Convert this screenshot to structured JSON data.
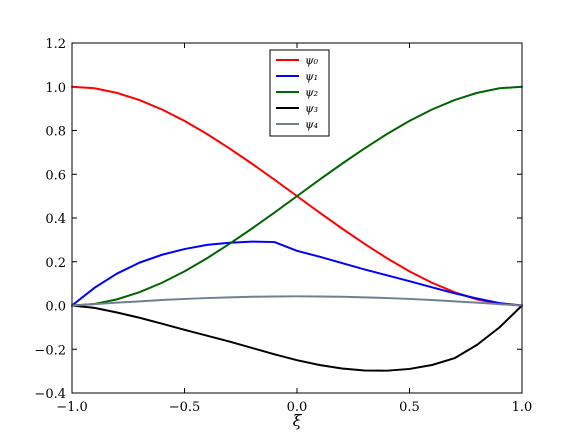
{
  "chart_data": {
    "type": "line",
    "title": "",
    "xlabel": "ξ",
    "ylabel": "",
    "xlim": [
      -1.0,
      1.0
    ],
    "ylim": [
      -0.4,
      1.2
    ],
    "x_ticks": [
      -1.0,
      -0.5,
      0.0,
      0.5,
      1.0
    ],
    "x_tick_labels": [
      "−1.0",
      "−0.5",
      "0.0",
      "0.5",
      "1.0"
    ],
    "y_ticks": [
      -0.4,
      -0.2,
      0.0,
      0.2,
      0.4,
      0.6,
      0.8,
      1.0,
      1.2
    ],
    "y_tick_labels": [
      "−0.4",
      "−0.2",
      "0.0",
      "0.2",
      "0.4",
      "0.6",
      "0.8",
      "1.0",
      "1.2"
    ],
    "grid": false,
    "legend_position": "top-center",
    "x": [
      -1.0,
      -0.9,
      -0.8,
      -0.7,
      -0.6,
      -0.5,
      -0.4,
      -0.3,
      -0.2,
      -0.1,
      0.0,
      0.1,
      0.2,
      0.3,
      0.4,
      0.5,
      0.6,
      0.7,
      0.8,
      0.9,
      1.0
    ],
    "series": [
      {
        "name": "ψ₀",
        "color": "#ff0000",
        "values": [
          1.0,
          0.993,
          0.972,
          0.939,
          0.896,
          0.844,
          0.784,
          0.718,
          0.648,
          0.575,
          0.5,
          0.425,
          0.352,
          0.282,
          0.216,
          0.156,
          0.104,
          0.061,
          0.028,
          0.007,
          0.0
        ]
      },
      {
        "name": "ψ₁",
        "color": "#0000ff",
        "values": [
          0.0,
          0.081,
          0.146,
          0.196,
          0.232,
          0.258,
          0.277,
          0.287,
          0.292,
          0.29,
          0.25,
          0.223,
          0.194,
          0.165,
          0.138,
          0.111,
          0.083,
          0.056,
          0.032,
          0.011,
          0.0
        ]
      },
      {
        "name": "ψ₂",
        "color": "#006400",
        "values": [
          0.0,
          0.007,
          0.028,
          0.061,
          0.104,
          0.156,
          0.216,
          0.282,
          0.352,
          0.425,
          0.5,
          0.575,
          0.648,
          0.718,
          0.784,
          0.844,
          0.896,
          0.939,
          0.972,
          0.993,
          1.0
        ]
      },
      {
        "name": "ψ₃",
        "color": "#000000",
        "values": [
          0.0,
          -0.011,
          -0.032,
          -0.056,
          -0.083,
          -0.111,
          -0.138,
          -0.165,
          -0.194,
          -0.223,
          -0.25,
          -0.272,
          -0.288,
          -0.297,
          -0.298,
          -0.29,
          -0.272,
          -0.241,
          -0.18,
          -0.1,
          0.0
        ]
      },
      {
        "name": "ψ₄",
        "color": "#708090",
        "values": [
          0.0,
          0.006,
          0.013,
          0.019,
          0.025,
          0.03,
          0.034,
          0.037,
          0.04,
          0.041,
          0.042,
          0.041,
          0.04,
          0.037,
          0.034,
          0.03,
          0.025,
          0.019,
          0.013,
          0.006,
          0.0
        ]
      }
    ]
  }
}
